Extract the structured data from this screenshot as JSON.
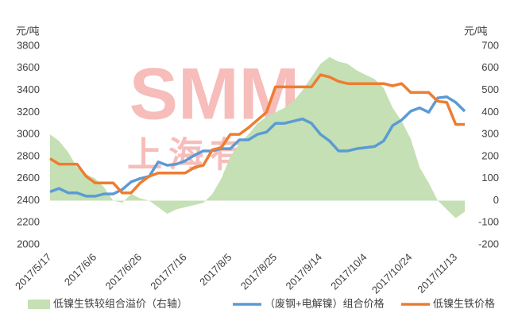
{
  "chart_data": {
    "type": "line",
    "y_unit": "元/吨",
    "y2_unit": "元/吨",
    "watermark": "SMM",
    "watermark_sub": "上海有色网",
    "categories": [
      "2017/5/17",
      null,
      null,
      null,
      null,
      "2017/6/6",
      null,
      null,
      null,
      null,
      "2017/6/26",
      null,
      null,
      null,
      null,
      "2017/7/16",
      null,
      null,
      null,
      null,
      "2017/8/5",
      null,
      null,
      null,
      null,
      "2017/8/25",
      null,
      null,
      null,
      null,
      "2017/9/14",
      null,
      null,
      null,
      null,
      "2017/10/4",
      null,
      null,
      null,
      null,
      "2017/10/24",
      null,
      null,
      null,
      null,
      "2017/11/13",
      null
    ],
    "series": [
      {
        "name": "低镍生铁较组合溢价（右轴）",
        "type": "area",
        "axis": "y2",
        "color": "#c5e0b4",
        "values": [
          300,
          270,
          220,
          150,
          120,
          100,
          60,
          0,
          -10,
          30,
          10,
          0,
          -30,
          -60,
          -40,
          -30,
          -20,
          -10,
          30,
          100,
          200,
          260,
          300,
          350,
          380,
          400,
          420,
          450,
          500,
          560,
          620,
          650,
          630,
          620,
          590,
          570,
          550,
          510,
          420,
          360,
          280,
          150,
          80,
          0,
          -40,
          -80,
          -50
        ]
      },
      {
        "name": "（废钢+电解镍）组合价格",
        "type": "line",
        "color": "#5b9bd5",
        "values": [
          2480,
          2510,
          2470,
          2470,
          2440,
          2440,
          2460,
          2460,
          2500,
          2570,
          2600,
          2620,
          2750,
          2720,
          2730,
          2760,
          2810,
          2850,
          2850,
          2870,
          2870,
          2950,
          2950,
          3000,
          3020,
          3100,
          3100,
          3120,
          3140,
          3100,
          3000,
          2940,
          2850,
          2850,
          2870,
          2880,
          2890,
          2940,
          3080,
          3130,
          3210,
          3240,
          3200,
          3330,
          3340,
          3290,
          3210
        ]
      },
      {
        "name": "低镍生铁价格",
        "type": "line",
        "color": "#ed7d31",
        "values": [
          2780,
          2730,
          2730,
          2730,
          2620,
          2560,
          2560,
          2560,
          2470,
          2470,
          2560,
          2620,
          2650,
          2650,
          2650,
          2650,
          2700,
          2720,
          2860,
          2880,
          3000,
          3000,
          3060,
          3130,
          3200,
          3430,
          3430,
          3430,
          3430,
          3430,
          3540,
          3520,
          3480,
          3460,
          3460,
          3460,
          3460,
          3460,
          3440,
          3460,
          3380,
          3380,
          3380,
          3300,
          3290,
          3090,
          3090
        ]
      }
    ],
    "ylim": [
      2000,
      3800
    ],
    "yticks": [
      2000,
      2200,
      2400,
      2600,
      2800,
      3000,
      3200,
      3400,
      3600,
      3800
    ],
    "y2lim": [
      -200,
      700
    ],
    "y2ticks": [
      -200,
      -100,
      0,
      100,
      200,
      300,
      400,
      500,
      600,
      700
    ],
    "grid": false,
    "legend": "bottom"
  }
}
